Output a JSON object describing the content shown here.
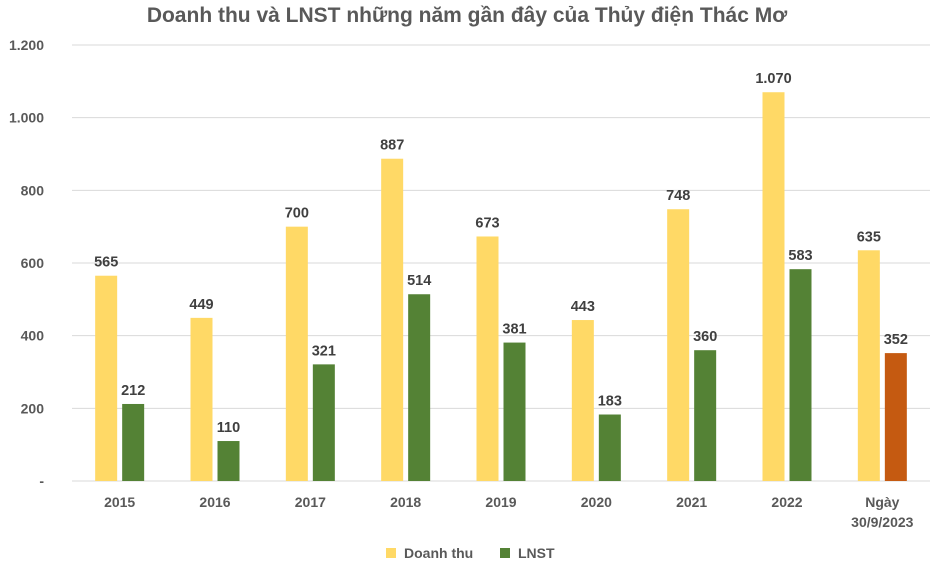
{
  "chart_data": {
    "type": "bar",
    "title": "Doanh thu và LNST những năm gần đây của Thủy điện Thác Mơ",
    "categories": [
      [
        "2015"
      ],
      [
        "2016"
      ],
      [
        "2017"
      ],
      [
        "2018"
      ],
      [
        "2019"
      ],
      [
        "2020"
      ],
      [
        "2021"
      ],
      [
        "2022"
      ],
      [
        "Ngày",
        "30/9/2023"
      ]
    ],
    "series": [
      {
        "name": "Doanh thu",
        "color": "#FFD966",
        "values": [
          565,
          449,
          700,
          887,
          673,
          443,
          748,
          1070,
          635
        ],
        "labels": [
          "565",
          "449",
          "700",
          "887",
          "673",
          "443",
          "748",
          "1.070",
          "635"
        ]
      },
      {
        "name": "LNST",
        "color": "#548235",
        "highlight_last_color": "#C55A11",
        "values": [
          212,
          110,
          321,
          514,
          381,
          183,
          360,
          583,
          352
        ],
        "labels": [
          "212",
          "110",
          "321",
          "514",
          "381",
          "183",
          "360",
          "583",
          "352"
        ]
      }
    ],
    "ylim": [
      0,
      1200
    ],
    "yticks": [
      0,
      200,
      400,
      600,
      800,
      1000,
      1200
    ],
    "ytick_labels": [
      "-",
      "200",
      "400",
      "600",
      "800",
      "1.000",
      "1.200"
    ],
    "grid": true,
    "legend_position": "bottom-center"
  }
}
